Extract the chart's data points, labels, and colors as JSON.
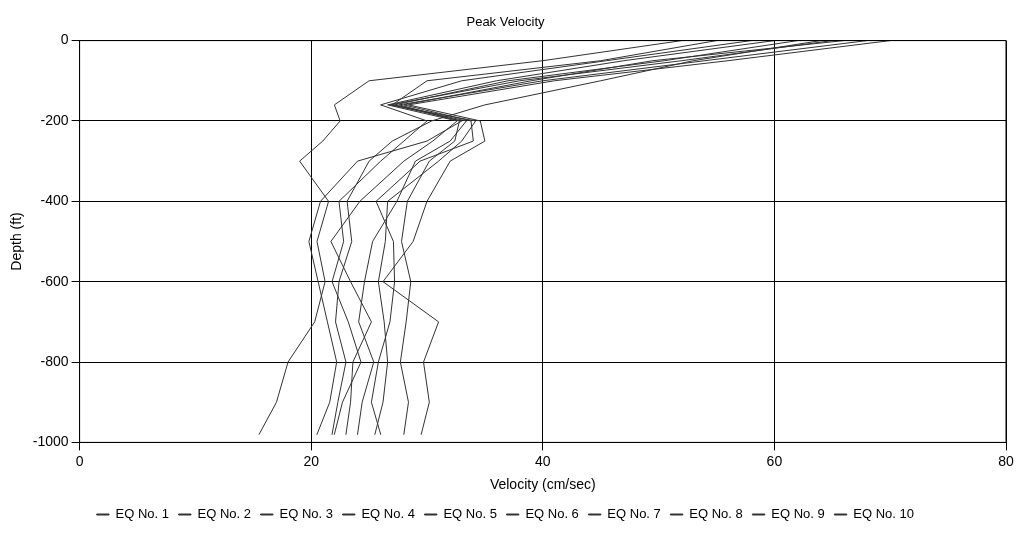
{
  "chart_data": {
    "type": "line",
    "title": "Peak Velocity",
    "xlabel": "Velocity (cm/sec)",
    "ylabel": "Depth (ft)",
    "xlim": [
      0,
      80
    ],
    "xticks": [
      0,
      20,
      40,
      60,
      80
    ],
    "ylim": [
      -1000,
      0
    ],
    "yticks": [
      0,
      -200,
      -400,
      -600,
      -800,
      -1000
    ],
    "grid": true,
    "legend": "bottom",
    "marker": "none",
    "line_style": "solid",
    "series": [
      {
        "name": "EQ No. 1",
        "color": "#333333",
        "x": [
          52,
          40,
          25,
          22,
          22.5,
          21,
          19,
          21.5,
          20.5,
          21.2,
          20.3,
          18,
          17,
          15.5
        ],
        "values": [
          0,
          -50,
          -100,
          -160,
          -200,
          -250,
          -300,
          -400,
          -500,
          -600,
          -700,
          -800,
          -900,
          -980
        ]
      },
      {
        "name": "EQ No. 2",
        "color": "#333333",
        "x": [
          55,
          45,
          30,
          27,
          33,
          30,
          24,
          20.8,
          19.8,
          20.6,
          21.4,
          22.2,
          21.6,
          20.5
        ],
        "values": [
          0,
          -50,
          -100,
          -160,
          -200,
          -250,
          -300,
          -400,
          -500,
          -600,
          -700,
          -800,
          -900,
          -980
        ]
      },
      {
        "name": "EQ No. 3",
        "color": "#333333",
        "x": [
          58,
          45.5,
          33,
          26,
          30,
          28,
          26,
          22.4,
          22.8,
          21.8,
          23.2,
          24.3,
          22.7,
          22
        ],
        "values": [
          0,
          -50,
          -100,
          -160,
          -200,
          -250,
          -300,
          -400,
          -500,
          -600,
          -700,
          -800,
          -900,
          -980
        ]
      },
      {
        "name": "EQ No. 4",
        "color": "#333333",
        "x": [
          60,
          47,
          36,
          26.6,
          32.6,
          30.5,
          28,
          24.2,
          21.7,
          23.4,
          25.2,
          23.6,
          23.4,
          23
        ],
        "values": [
          0,
          -50,
          -100,
          -160,
          -200,
          -250,
          -300,
          -400,
          -500,
          -600,
          -700,
          -800,
          -900,
          -980
        ]
      },
      {
        "name": "EQ No. 5",
        "color": "#333333",
        "x": [
          62,
          50.5,
          37,
          27.2,
          33.4,
          32,
          29,
          27.4,
          25.3,
          24.6,
          24.1,
          25.4,
          24.4,
          24
        ],
        "values": [
          0,
          -50,
          -100,
          -160,
          -200,
          -250,
          -300,
          -400,
          -500,
          -600,
          -700,
          -800,
          -900,
          -980
        ]
      },
      {
        "name": "EQ No. 6",
        "color": "#333333",
        "x": [
          65,
          52,
          38,
          26.8,
          34.2,
          33,
          31,
          26.6,
          26.4,
          25.8,
          26.3,
          26.6,
          26.2,
          25.5
        ],
        "values": [
          0,
          -50,
          -100,
          -160,
          -200,
          -250,
          -300,
          -400,
          -500,
          -600,
          -700,
          -800,
          -900,
          -980
        ]
      },
      {
        "name": "EQ No. 7",
        "color": "#333333",
        "x": [
          66,
          49.5,
          39,
          28,
          33.8,
          34,
          29.4,
          25.6,
          27.1,
          27.2,
          26.8,
          25.8,
          25.2,
          26
        ],
        "values": [
          0,
          -50,
          -100,
          -160,
          -200,
          -250,
          -300,
          -400,
          -500,
          -600,
          -700,
          -800,
          -900,
          -980
        ]
      },
      {
        "name": "EQ No. 8",
        "color": "#333333",
        "x": [
          68,
          54,
          40,
          27.6,
          32.8,
          32.4,
          30.2,
          28.3,
          27.8,
          28.6,
          28.2,
          27.7,
          28.4,
          28
        ],
        "values": [
          0,
          -50,
          -100,
          -160,
          -200,
          -250,
          -300,
          -400,
          -500,
          -600,
          -700,
          -800,
          -900,
          -980
        ]
      },
      {
        "name": "EQ No. 9",
        "color": "#333333",
        "x": [
          70,
          56,
          41,
          28.4,
          34.6,
          35,
          32,
          30,
          28.8,
          26.2,
          31,
          29.7,
          30.2,
          29.5
        ],
        "values": [
          0,
          -50,
          -100,
          -160,
          -200,
          -250,
          -300,
          -400,
          -500,
          -600,
          -700,
          -800,
          -900,
          -980
        ]
      },
      {
        "name": "EQ No. 10",
        "color": "#333333",
        "x": [
          64,
          53,
          45,
          35,
          30.4,
          27,
          25,
          23.1,
          23.5,
          22.4,
          22.1,
          23,
          22.3,
          21.8
        ],
        "values": [
          0,
          -50,
          -100,
          -160,
          -200,
          -250,
          -300,
          -400,
          -500,
          -600,
          -700,
          -800,
          -900,
          -980
        ]
      }
    ]
  }
}
